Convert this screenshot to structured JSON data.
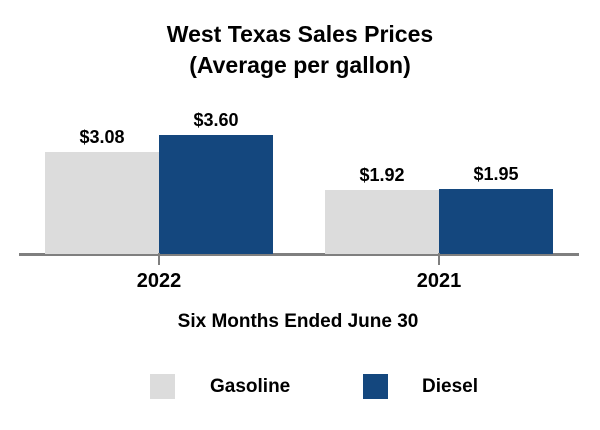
{
  "title": {
    "line1": "West Texas Sales Prices",
    "line2": "(Average per gallon)"
  },
  "chart_data": {
    "type": "bar",
    "title": "West Texas Sales Prices (Average per gallon)",
    "categories": [
      "2022",
      "2021"
    ],
    "series": [
      {
        "name": "Gasoline",
        "color": "#dcdcdc",
        "values": [
          3.08,
          1.92
        ]
      },
      {
        "name": "Diesel",
        "color": "#14477e",
        "values": [
          3.6,
          1.95
        ]
      }
    ],
    "value_labels": [
      [
        "$3.08",
        "$1.92"
      ],
      [
        "$3.60",
        "$1.95"
      ]
    ],
    "xlabel": "Six Months Ended June 30",
    "ylabel": "",
    "ylim": [
      0,
      4
    ],
    "grid": false,
    "legend_position": "bottom",
    "value_prefix": "$"
  },
  "colors": {
    "gasoline_gray": "#dcdcdc",
    "diesel_blue": "#14477e",
    "axis_gray": "#7f7f7f",
    "text": "#000000",
    "background": "#ffffff"
  }
}
